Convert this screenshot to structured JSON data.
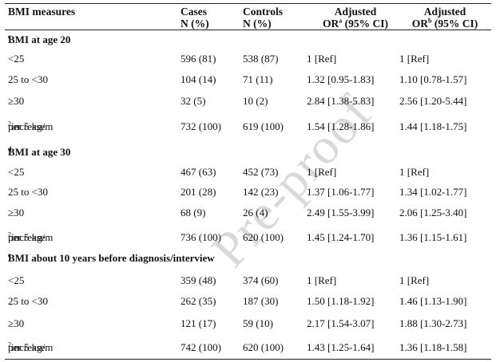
{
  "header": {
    "col0": "BMI measures",
    "col1_line1": "Cases",
    "col1_line2": "N (%)",
    "col2_line1": "Controls",
    "col2_line2": "N (%)",
    "col3_line1": "Adjusted",
    "col3_line2_pre": "OR",
    "col3_sup": "a",
    "col3_line2_post": " (95% CI)",
    "col4_line1": "Adjusted",
    "col4_line2_pre": "OR",
    "col4_sup": "b",
    "col4_line2_post": " (95% CI)"
  },
  "sections": [
    {
      "title": "BMI at age 20",
      "sup": "c",
      "rows": [
        {
          "label": "<25",
          "cases": "596 (81)",
          "controls": "538 (87)",
          "or_a": "1 [Ref]",
          "or_b": "1 [Ref]"
        },
        {
          "label": "25 to <30",
          "cases": "104 (14)",
          "controls": "71 (11)",
          "or_a": "1.32 [0.95-1.83]",
          "or_b": "1.10 [0.78-1.57]"
        },
        {
          "label": "≥30",
          "cases": "32 (5)",
          "controls": "10 (2)",
          "or_a": "2.84 [1.38-5.83]",
          "or_b": "2.56 [1.20-5.44]"
        },
        {
          "label_pre": "per 5 kg/m",
          "label_sup": "2",
          "label_post": " increase",
          "cases": "732 (100)",
          "controls": "619 (100)",
          "or_a": "1.54 [1.28-1.86]",
          "or_b": "1.44 [1.18-1.75]"
        }
      ]
    },
    {
      "title": "BMI at age 30",
      "sup": "d",
      "rows": [
        {
          "label": "<25",
          "cases": "467 (63)",
          "controls": "452 (73)",
          "or_a": "1 [Ref]",
          "or_b": "1 [Ref]"
        },
        {
          "label": "25 to <30",
          "cases": "201 (28)",
          "controls": "142 (23)",
          "or_a": "1.37 [1.06-1.77]",
          "or_b": "1.34 [1.02-1.77]"
        },
        {
          "label": "≥30",
          "cases": "68 (9)",
          "controls": "26 (4)",
          "or_a": "2.49 [1.55-3.99]",
          "or_b": "2.06 [1.25-3.40]"
        },
        {
          "label_pre": "per 5 kg/m",
          "label_sup": "2",
          "label_post": " increase",
          "cases": "736 (100)",
          "controls": "620 (100)",
          "or_a": "1.45 [1.24-1.70]",
          "or_b": "1.36 [1.15-1.61]"
        }
      ]
    },
    {
      "title": "BMI about 10 years before diagnosis/interview",
      "sup": "e",
      "rows": [
        {
          "label": "<25",
          "cases": "359 (48)",
          "controls": "374 (60)",
          "or_a": "1 [Ref]",
          "or_b": "1 [Ref]"
        },
        {
          "label": "25 to <30",
          "cases": "262 (35)",
          "controls": "187 (30)",
          "or_a": "1.50 [1.18-1.92]",
          "or_b": "1.46 [1.13-1.90]"
        },
        {
          "label": "≥30",
          "cases": "121 (17)",
          "controls": "59 (10)",
          "or_a": "2.17 [1.54-3.07]",
          "or_b": "1.88 [1.30-2.73]"
        },
        {
          "label_pre": "per 5 kg/m",
          "label_sup": "2",
          "label_post": " increase",
          "cases": "742 (100)",
          "controls": "620 (100)",
          "or_a": "1.43 [1.25-1.64]",
          "or_b": "1.36 [1.18-1.58]"
        }
      ]
    }
  ],
  "watermark": "Pre-proof"
}
